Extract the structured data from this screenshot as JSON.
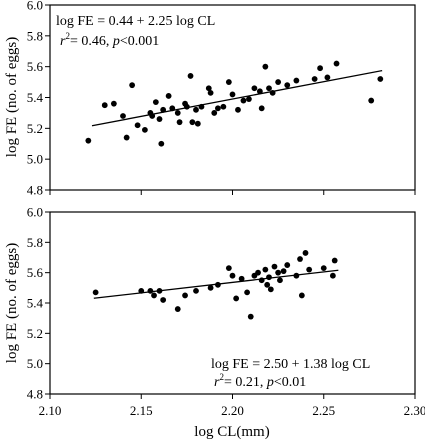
{
  "chart_data": [
    {
      "type": "scatter",
      "panel": "top",
      "xlim": [
        2.1,
        2.3
      ],
      "ylim": [
        4.8,
        6.0
      ],
      "yticks": [
        "4.8",
        "5.0",
        "5.2",
        "5.4",
        "5.6",
        "5.8",
        "6.0"
      ],
      "ylabel": "log FE (no. of eggs)",
      "annotation_line1": "log FE = 0.44 + 2.25 log CL",
      "annotation_r": "r",
      "annotation_r_sup": "2",
      "annotation_r_rest": "= 0.46, ",
      "annotation_p": "p",
      "annotation_p_rest": "<0.001",
      "annotation_position": "top-left",
      "regression": {
        "intercept": 0.44,
        "slope": 2.25,
        "x": [
          2.123,
          2.282
        ]
      },
      "points": [
        [
          2.121,
          5.12
        ],
        [
          2.13,
          5.35
        ],
        [
          2.135,
          5.36
        ],
        [
          2.14,
          5.28
        ],
        [
          2.142,
          5.14
        ],
        [
          2.145,
          5.48
        ],
        [
          2.148,
          5.22
        ],
        [
          2.152,
          5.19
        ],
        [
          2.155,
          5.3
        ],
        [
          2.156,
          5.28
        ],
        [
          2.158,
          5.37
        ],
        [
          2.16,
          5.26
        ],
        [
          2.161,
          5.1
        ],
        [
          2.162,
          5.32
        ],
        [
          2.165,
          5.41
        ],
        [
          2.167,
          5.33
        ],
        [
          2.17,
          5.3
        ],
        [
          2.171,
          5.24
        ],
        [
          2.174,
          5.36
        ],
        [
          2.175,
          5.34
        ],
        [
          2.177,
          5.54
        ],
        [
          2.178,
          5.24
        ],
        [
          2.18,
          5.32
        ],
        [
          2.181,
          5.23
        ],
        [
          2.183,
          5.34
        ],
        [
          2.187,
          5.46
        ],
        [
          2.188,
          5.43
        ],
        [
          2.19,
          5.3
        ],
        [
          2.192,
          5.33
        ],
        [
          2.195,
          5.34
        ],
        [
          2.198,
          5.5
        ],
        [
          2.2,
          5.42
        ],
        [
          2.203,
          5.32
        ],
        [
          2.206,
          5.38
        ],
        [
          2.209,
          5.39
        ],
        [
          2.212,
          5.46
        ],
        [
          2.215,
          5.44
        ],
        [
          2.216,
          5.33
        ],
        [
          2.218,
          5.6
        ],
        [
          2.22,
          5.46
        ],
        [
          2.222,
          5.43
        ],
        [
          2.225,
          5.5
        ],
        [
          2.23,
          5.48
        ],
        [
          2.235,
          5.51
        ],
        [
          2.245,
          5.52
        ],
        [
          2.248,
          5.59
        ],
        [
          2.252,
          5.53
        ],
        [
          2.257,
          5.62
        ],
        [
          2.276,
          5.38
        ],
        [
          2.281,
          5.52
        ]
      ]
    },
    {
      "type": "scatter",
      "panel": "bottom",
      "xlim": [
        2.1,
        2.3
      ],
      "ylim": [
        4.8,
        6.0
      ],
      "xticks": [
        "2.10",
        "2.15",
        "2.20",
        "2.25",
        "2.30"
      ],
      "yticks": [
        "4.8",
        "5.0",
        "5.2",
        "5.4",
        "5.6",
        "5.8",
        "6.0"
      ],
      "xlabel": "log CL(mm)",
      "ylabel": "log FE (no. of eggs)",
      "annotation_line1": "log FE = 2.50 + 1.38 log CL",
      "annotation_r": "r",
      "annotation_r_sup": "2",
      "annotation_r_rest": "= 0.21, ",
      "annotation_p": "p",
      "annotation_p_rest": "<0.01",
      "annotation_position": "bottom-right",
      "regression": {
        "intercept": 2.5,
        "slope": 1.38,
        "x": [
          2.124,
          2.258
        ]
      },
      "points": [
        [
          2.125,
          5.47
        ],
        [
          2.15,
          5.48
        ],
        [
          2.155,
          5.48
        ],
        [
          2.157,
          5.45
        ],
        [
          2.16,
          5.48
        ],
        [
          2.162,
          5.42
        ],
        [
          2.17,
          5.36
        ],
        [
          2.174,
          5.45
        ],
        [
          2.18,
          5.48
        ],
        [
          2.188,
          5.5
        ],
        [
          2.192,
          5.52
        ],
        [
          2.198,
          5.63
        ],
        [
          2.2,
          5.58
        ],
        [
          2.202,
          5.43
        ],
        [
          2.205,
          5.56
        ],
        [
          2.208,
          5.47
        ],
        [
          2.21,
          5.31
        ],
        [
          2.212,
          5.58
        ],
        [
          2.214,
          5.6
        ],
        [
          2.216,
          5.55
        ],
        [
          2.218,
          5.62
        ],
        [
          2.219,
          5.52
        ],
        [
          2.22,
          5.57
        ],
        [
          2.221,
          5.49
        ],
        [
          2.223,
          5.64
        ],
        [
          2.225,
          5.6
        ],
        [
          2.226,
          5.55
        ],
        [
          2.228,
          5.61
        ],
        [
          2.23,
          5.65
        ],
        [
          2.235,
          5.58
        ],
        [
          2.237,
          5.69
        ],
        [
          2.238,
          5.45
        ],
        [
          2.24,
          5.73
        ],
        [
          2.242,
          5.62
        ],
        [
          2.25,
          5.63
        ],
        [
          2.255,
          5.58
        ],
        [
          2.256,
          5.68
        ]
      ]
    }
  ]
}
